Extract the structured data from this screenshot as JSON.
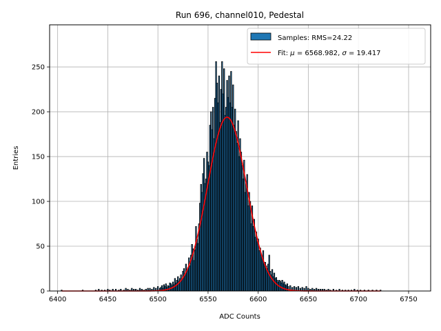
{
  "chart_data": {
    "type": "bar",
    "title": "Run 696, channel010, Pedestal",
    "xlabel": "ADC Counts",
    "ylabel": "Entries",
    "xlim": [
      6392,
      6772
    ],
    "ylim": [
      0,
      297
    ],
    "xticks": [
      6400,
      6450,
      6500,
      6550,
      6600,
      6650,
      6700,
      6750
    ],
    "yticks": [
      0,
      50,
      100,
      150,
      200,
      250
    ],
    "grid": true,
    "legend_position": "top-right",
    "bin_width": 1,
    "histogram": {
      "name": "Samples: RMS=24.22",
      "bar_color": "#1f77b4",
      "edge_color": "#000000",
      "x": [
        6404,
        6425,
        6438,
        6441,
        6444,
        6447,
        6450,
        6452,
        6455,
        6458,
        6461,
        6463,
        6466,
        6468,
        6470,
        6472,
        6474,
        6476,
        6478,
        6480,
        6482,
        6484,
        6486,
        6488,
        6490,
        6492,
        6494,
        6496,
        6498,
        6500,
        6502,
        6503,
        6504,
        6505,
        6506,
        6507,
        6508,
        6509,
        6510,
        6511,
        6512,
        6513,
        6514,
        6515,
        6516,
        6517,
        6518,
        6519,
        6520,
        6521,
        6522,
        6523,
        6524,
        6525,
        6526,
        6527,
        6528,
        6529,
        6530,
        6531,
        6532,
        6533,
        6534,
        6535,
        6536,
        6537,
        6538,
        6539,
        6540,
        6541,
        6542,
        6543,
        6544,
        6545,
        6546,
        6547,
        6548,
        6549,
        6550,
        6551,
        6552,
        6553,
        6554,
        6555,
        6556,
        6557,
        6558,
        6559,
        6560,
        6561,
        6562,
        6563,
        6564,
        6565,
        6566,
        6567,
        6568,
        6569,
        6570,
        6571,
        6572,
        6573,
        6574,
        6575,
        6576,
        6577,
        6578,
        6579,
        6580,
        6581,
        6582,
        6583,
        6584,
        6585,
        6586,
        6587,
        6588,
        6589,
        6590,
        6591,
        6592,
        6593,
        6594,
        6595,
        6596,
        6597,
        6598,
        6599,
        6600,
        6601,
        6602,
        6603,
        6604,
        6605,
        6606,
        6607,
        6608,
        6609,
        6610,
        6611,
        6612,
        6613,
        6614,
        6615,
        6616,
        6617,
        6618,
        6619,
        6620,
        6621,
        6622,
        6623,
        6624,
        6625,
        6626,
        6627,
        6628,
        6629,
        6630,
        6632,
        6634,
        6636,
        6638,
        6640,
        6642,
        6644,
        6646,
        6648,
        6650,
        6652,
        6654,
        6656,
        6658,
        6660,
        6662,
        6664,
        6666,
        6668,
        6670,
        6672,
        6675,
        6678,
        6681,
        6684,
        6687,
        6690,
        6693,
        6696,
        6699,
        6702,
        6706,
        6710,
        6714,
        6718,
        6722
      ],
      "values": [
        1,
        1,
        1,
        2,
        1,
        1,
        2,
        1,
        2,
        2,
        1,
        2,
        1,
        3,
        2,
        1,
        3,
        2,
        2,
        1,
        3,
        2,
        1,
        2,
        3,
        3,
        2,
        4,
        3,
        5,
        3,
        4,
        6,
        3,
        7,
        5,
        8,
        4,
        6,
        5,
        9,
        8,
        6,
        10,
        7,
        14,
        9,
        12,
        16,
        11,
        14,
        18,
        13,
        22,
        25,
        17,
        30,
        24,
        26,
        37,
        28,
        40,
        52,
        47,
        34,
        46,
        72,
        58,
        53,
        75,
        98,
        119,
        110,
        131,
        148,
        120,
        125,
        155,
        144,
        140,
        185,
        200,
        180,
        205,
        170,
        215,
        256,
        232,
        210,
        240,
        188,
        225,
        256,
        220,
        248,
        196,
        205,
        235,
        216,
        240,
        210,
        245,
        205,
        230,
        185,
        203,
        178,
        165,
        190,
        150,
        170,
        155,
        140,
        125,
        146,
        110,
        120,
        130,
        95,
        110,
        100,
        75,
        95,
        72,
        80,
        60,
        66,
        55,
        58,
        45,
        48,
        40,
        36,
        45,
        30,
        32,
        28,
        25,
        30,
        40,
        22,
        18,
        24,
        16,
        20,
        14,
        15,
        12,
        10,
        12,
        11,
        9,
        12,
        8,
        10,
        7,
        6,
        8,
        5,
        6,
        4,
        5,
        4,
        5,
        3,
        4,
        3,
        5,
        3,
        2,
        3,
        2,
        3,
        2,
        2,
        2,
        2,
        1,
        2,
        1,
        2,
        1,
        2,
        1,
        1,
        1,
        1,
        2,
        1,
        1,
        1,
        1,
        1,
        1,
        1
      ]
    },
    "fit": {
      "name": "Fit: μ = 6568.982, σ = 19.417",
      "legend_prefix": "Fit: ",
      "mu_symbol": "μ",
      "mu_text": " = 6568.982, ",
      "sigma_symbol": "σ",
      "sigma_text": " = 19.417",
      "color": "#ff0000",
      "mu": 6568.982,
      "sigma": 19.417,
      "amplitude": 194,
      "x_range": [
        6404,
        6722
      ]
    }
  }
}
